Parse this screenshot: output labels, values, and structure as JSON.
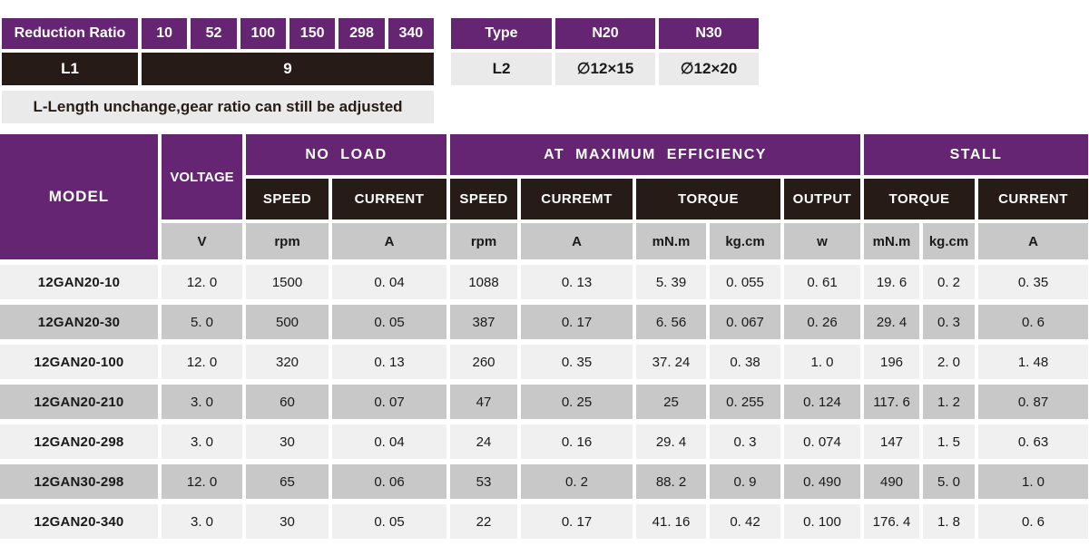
{
  "colors": {
    "purple": "#652573",
    "dark_brown": "#261B16",
    "row_light": "#F0F0F0",
    "row_dark": "#C8C8C8",
    "note_bg": "#EAEAEA"
  },
  "reduction_table": {
    "header_label": "Reduction Ratio",
    "ratios": [
      "10",
      "52",
      "100",
      "150",
      "298",
      "340"
    ],
    "row_label": "L1",
    "row_value": "9",
    "note": "L-Length unchange,gear ratio can still be adjusted"
  },
  "type_table": {
    "header_label": "Type",
    "columns": [
      "N20",
      "N30"
    ],
    "row_label": "L2",
    "values": [
      "∅12×15",
      "∅12×20"
    ]
  },
  "spec_table": {
    "model_header": "MODEL",
    "voltage_header": "VOLTAGE",
    "groups": {
      "no_load": "NO LOAD",
      "max_efficiency": "AT MAXIMUM EFFICIENCY",
      "stall": "STALL"
    },
    "sub_headers": {
      "nl_speed": "SPEED",
      "nl_current": "CURRENT",
      "me_speed": "SPEED",
      "me_current": "CURREMT",
      "me_torque": "TORQUE",
      "output": "OUTPUT",
      "st_torque": "TORQUE",
      "st_current": "CURRENT"
    },
    "units": {
      "voltage": "V",
      "nl_speed": "rpm",
      "nl_current": "A",
      "me_speed": "rpm",
      "me_current": "A",
      "me_torque_mnm": "mN.m",
      "me_torque_kgcm": "kg.cm",
      "output": "w",
      "st_torque_mnm": "mN.m",
      "st_torque_kgcm": "kg.cm",
      "st_current": "A"
    },
    "rows": [
      [
        "12GAN20-10",
        "12. 0",
        "1500",
        "0. 04",
        "1088",
        "0. 13",
        "5. 39",
        "0. 055",
        "0. 61",
        "19. 6",
        "0. 2",
        "0. 35"
      ],
      [
        "12GAN20-30",
        "5. 0",
        "500",
        "0. 05",
        "387",
        "0. 17",
        "6. 56",
        "0. 067",
        "0. 26",
        "29. 4",
        "0. 3",
        "0. 6"
      ],
      [
        "12GAN20-100",
        "12. 0",
        "320",
        "0. 13",
        "260",
        "0. 35",
        "37. 24",
        "0. 38",
        "1. 0",
        "196",
        "2. 0",
        "1. 48"
      ],
      [
        "12GAN20-210",
        "3. 0",
        "60",
        "0. 07",
        "47",
        "0. 25",
        "25",
        "0. 255",
        "0. 124",
        "117. 6",
        "1. 2",
        "0. 87"
      ],
      [
        "12GAN20-298",
        "3. 0",
        "30",
        "0. 04",
        "24",
        "0. 16",
        "29. 4",
        "0. 3",
        "0. 074",
        "147",
        "1. 5",
        "0. 63"
      ],
      [
        "12GAN30-298",
        "12. 0",
        "65",
        "0. 06",
        "53",
        "0. 2",
        "88. 2",
        "0. 9",
        "0. 490",
        "490",
        "5. 0",
        "1. 0"
      ],
      [
        "12GAN20-340",
        "3. 0",
        "30",
        "0. 05",
        "22",
        "0. 17",
        "41. 16",
        "0. 42",
        "0. 100",
        "176. 4",
        "1. 8",
        "0. 6"
      ]
    ]
  }
}
